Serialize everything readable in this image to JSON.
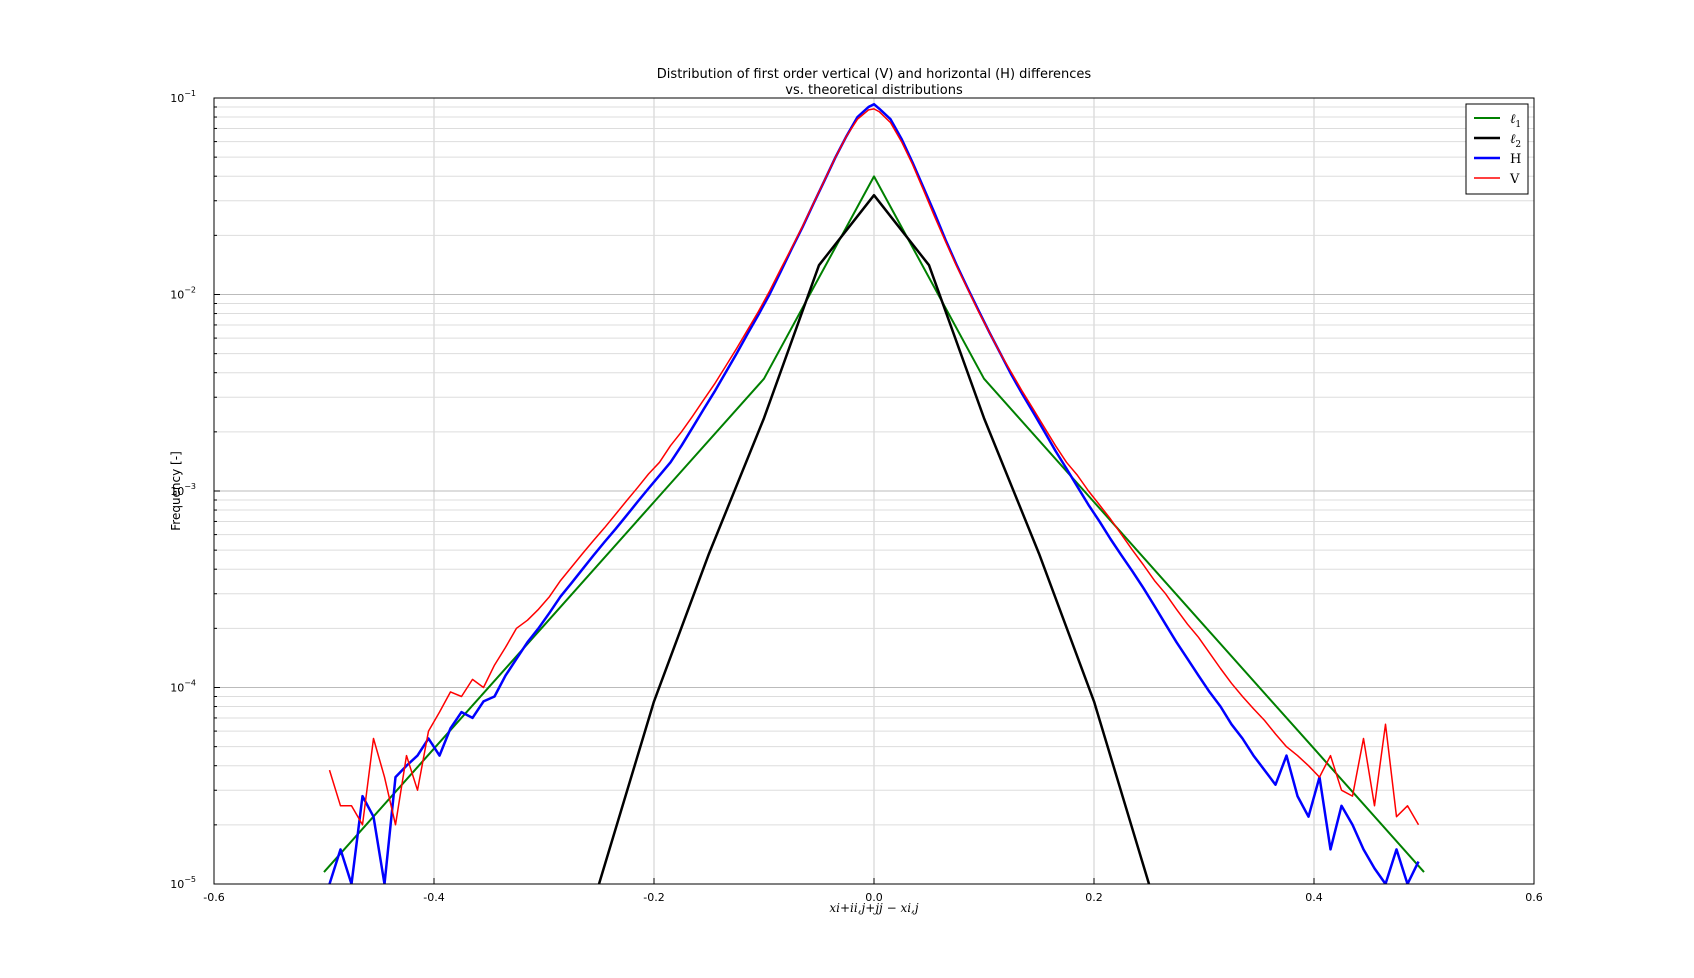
{
  "chart_data": {
    "type": "line",
    "title": "Distribution of first order vertical (V) and horizontal (H) differences",
    "subtitle": "vs. theoretical distributions",
    "xlabel": "x_{i+ii,j+jj} − x_{i,j}",
    "xlabel_display": "xi+ii,j+jj − xi,j",
    "ylabel": "Frequency [-]",
    "xlim": [
      -0.6,
      0.6
    ],
    "ylim": [
      1e-05,
      0.1
    ],
    "yscale": "log",
    "grid": true,
    "legend_position": "top-right",
    "x_ticks": [
      "-0.6",
      "-0.4",
      "-0.2",
      "0.0",
      "0.2",
      "0.4",
      "0.6"
    ],
    "y_ticks": [
      {
        "base": "10",
        "exp": "−5"
      },
      {
        "base": "10",
        "exp": "−4"
      },
      {
        "base": "10",
        "exp": "−3"
      },
      {
        "base": "10",
        "exp": "−2"
      },
      {
        "base": "10",
        "exp": "−1"
      }
    ],
    "series": [
      {
        "name": "ℓ1",
        "label_main": "ℓ",
        "label_sub": "1",
        "color": "#008000",
        "width": 2,
        "x": [
          -0.5,
          -0.4,
          -0.3,
          -0.2,
          -0.1,
          0.0,
          0.1,
          0.2,
          0.3,
          0.4,
          0.5
        ],
        "y": [
          1.15e-05,
          4.89e-05,
          0.000207,
          0.000879,
          0.00373,
          0.0399,
          0.00373,
          0.000879,
          0.000207,
          4.89e-05,
          1.15e-05
        ]
      },
      {
        "name": "ℓ2",
        "label_main": "ℓ",
        "label_sub": "2",
        "color": "#000000",
        "width": 2.5,
        "x": [
          -0.25,
          -0.2,
          -0.15,
          -0.1,
          -0.05,
          0.0,
          0.05,
          0.1,
          0.15,
          0.2,
          0.25
        ],
        "y": [
          1e-05,
          8.5e-05,
          0.00048,
          0.00235,
          0.0141,
          0.032,
          0.0141,
          0.00235,
          0.00048,
          8.5e-05,
          1e-05
        ]
      },
      {
        "name": "H",
        "color": "#0000ff",
        "width": 2.5,
        "x": [
          -0.495,
          -0.485,
          -0.475,
          -0.465,
          -0.455,
          -0.445,
          -0.435,
          -0.425,
          -0.415,
          -0.405,
          -0.395,
          -0.385,
          -0.375,
          -0.365,
          -0.355,
          -0.345,
          -0.335,
          -0.325,
          -0.315,
          -0.305,
          -0.295,
          -0.285,
          -0.275,
          -0.265,
          -0.255,
          -0.245,
          -0.235,
          -0.225,
          -0.215,
          -0.205,
          -0.195,
          -0.185,
          -0.175,
          -0.165,
          -0.155,
          -0.145,
          -0.135,
          -0.125,
          -0.115,
          -0.105,
          -0.095,
          -0.085,
          -0.075,
          -0.065,
          -0.055,
          -0.045,
          -0.035,
          -0.025,
          -0.015,
          -0.005,
          0.0,
          0.005,
          0.015,
          0.025,
          0.035,
          0.045,
          0.055,
          0.065,
          0.075,
          0.085,
          0.095,
          0.105,
          0.115,
          0.125,
          0.135,
          0.145,
          0.155,
          0.165,
          0.175,
          0.185,
          0.195,
          0.205,
          0.215,
          0.225,
          0.235,
          0.245,
          0.255,
          0.265,
          0.275,
          0.285,
          0.295,
          0.305,
          0.315,
          0.325,
          0.335,
          0.345,
          0.355,
          0.365,
          0.375,
          0.385,
          0.395,
          0.405,
          0.415,
          0.425,
          0.435,
          0.445,
          0.455,
          0.465,
          0.475,
          0.485,
          0.495
        ],
        "y": [
          1e-05,
          1.5e-05,
          1e-05,
          2.8e-05,
          2.2e-05,
          1e-05,
          3.5e-05,
          4e-05,
          4.5e-05,
          5.5e-05,
          4.5e-05,
          6.2e-05,
          7.5e-05,
          7e-05,
          8.5e-05,
          9e-05,
          0.000115,
          0.00014,
          0.00017,
          0.0002,
          0.00024,
          0.00029,
          0.00034,
          0.0004,
          0.00047,
          0.00055,
          0.00064,
          0.00075,
          0.00088,
          0.00103,
          0.0012,
          0.0014,
          0.0017,
          0.0021,
          0.0026,
          0.0032,
          0.004,
          0.005,
          0.0063,
          0.0079,
          0.01,
          0.013,
          0.017,
          0.022,
          0.029,
          0.038,
          0.05,
          0.064,
          0.08,
          0.09,
          0.093,
          0.088,
          0.078,
          0.062,
          0.047,
          0.035,
          0.026,
          0.019,
          0.0142,
          0.0108,
          0.0083,
          0.0064,
          0.005,
          0.0039,
          0.0031,
          0.0025,
          0.002,
          0.0016,
          0.0013,
          0.00105,
          0.00085,
          0.0007,
          0.00057,
          0.00047,
          0.00039,
          0.00032,
          0.00026,
          0.00021,
          0.00017,
          0.00014,
          0.000115,
          9.5e-05,
          8e-05,
          6.5e-05,
          5.5e-05,
          4.5e-05,
          3.8e-05,
          3.2e-05,
          4.5e-05,
          2.8e-05,
          2.2e-05,
          3.5e-05,
          1.5e-05,
          2.5e-05,
          2e-05,
          1.5e-05,
          1.2e-05,
          1e-05,
          1.5e-05,
          1e-05,
          1.3e-05
        ]
      },
      {
        "name": "V",
        "color": "#ff0000",
        "width": 1.5,
        "x": [
          -0.495,
          -0.485,
          -0.475,
          -0.465,
          -0.455,
          -0.445,
          -0.435,
          -0.425,
          -0.415,
          -0.405,
          -0.395,
          -0.385,
          -0.375,
          -0.365,
          -0.355,
          -0.345,
          -0.335,
          -0.325,
          -0.315,
          -0.305,
          -0.295,
          -0.285,
          -0.275,
          -0.265,
          -0.255,
          -0.245,
          -0.235,
          -0.225,
          -0.215,
          -0.205,
          -0.195,
          -0.185,
          -0.175,
          -0.165,
          -0.155,
          -0.145,
          -0.135,
          -0.125,
          -0.115,
          -0.105,
          -0.095,
          -0.085,
          -0.075,
          -0.065,
          -0.055,
          -0.045,
          -0.035,
          -0.025,
          -0.015,
          -0.005,
          0.0,
          0.005,
          0.015,
          0.025,
          0.035,
          0.045,
          0.055,
          0.065,
          0.075,
          0.085,
          0.095,
          0.105,
          0.115,
          0.125,
          0.135,
          0.145,
          0.155,
          0.165,
          0.175,
          0.185,
          0.195,
          0.205,
          0.215,
          0.225,
          0.235,
          0.245,
          0.255,
          0.265,
          0.275,
          0.285,
          0.295,
          0.305,
          0.315,
          0.325,
          0.335,
          0.345,
          0.355,
          0.365,
          0.375,
          0.385,
          0.395,
          0.405,
          0.415,
          0.425,
          0.435,
          0.445,
          0.455,
          0.465,
          0.475,
          0.485,
          0.495
        ],
        "y": [
          3.8e-05,
          2.5e-05,
          2.5e-05,
          2e-05,
          5.5e-05,
          3.5e-05,
          2e-05,
          4.5e-05,
          3e-05,
          6e-05,
          7.5e-05,
          9.5e-05,
          9e-05,
          0.00011,
          0.0001,
          0.00013,
          0.00016,
          0.0002,
          0.00022,
          0.00025,
          0.00029,
          0.00035,
          0.00041,
          0.00048,
          0.00056,
          0.00065,
          0.00076,
          0.00089,
          0.00104,
          0.00122,
          0.0014,
          0.0017,
          0.002,
          0.0024,
          0.0029,
          0.0035,
          0.0043,
          0.0053,
          0.0066,
          0.0082,
          0.0104,
          0.0134,
          0.0172,
          0.0222,
          0.0291,
          0.0381,
          0.05,
          0.064,
          0.078,
          0.087,
          0.088,
          0.085,
          0.075,
          0.06,
          0.046,
          0.034,
          0.025,
          0.0186,
          0.014,
          0.0107,
          0.0082,
          0.0064,
          0.005,
          0.004,
          0.0032,
          0.0026,
          0.0021,
          0.0017,
          0.0014,
          0.0012,
          0.001,
          0.00085,
          0.00072,
          0.0006,
          0.0005,
          0.00042,
          0.00035,
          0.0003,
          0.00025,
          0.00021,
          0.00018,
          0.00015,
          0.000125,
          0.000105,
          9e-05,
          7.8e-05,
          6.8e-05,
          5.8e-05,
          5e-05,
          4.5e-05,
          4e-05,
          3.5e-05,
          4.5e-05,
          3e-05,
          2.8e-05,
          5.5e-05,
          2.5e-05,
          6.5e-05,
          2.2e-05,
          2.5e-05,
          2e-05
        ]
      }
    ]
  }
}
